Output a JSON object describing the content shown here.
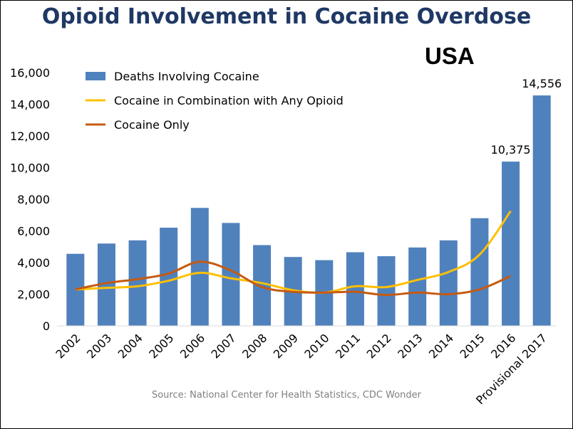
{
  "title": "Opioid Involvement in Cocaine Overdose",
  "region": "USA",
  "source": "Source: National Center for Health Statistics, CDC Wonder",
  "colors": {
    "bar": "#4f81bd",
    "combo": "#ffc000",
    "only": "#c55a11",
    "title": "#1f3864"
  },
  "chart_data": {
    "type": "bar",
    "categories": [
      "2002",
      "2003",
      "2004",
      "2005",
      "2006",
      "2007",
      "2008",
      "2009",
      "2010",
      "2011",
      "2012",
      "2013",
      "2014",
      "2015",
      "2016",
      "Provisional 2017"
    ],
    "ylim": [
      0,
      16000
    ],
    "yticks": [
      "0",
      "2,000",
      "4,000",
      "6,000",
      "8,000",
      "10,000",
      "12,000",
      "14,000",
      "16,000"
    ],
    "grid": false,
    "legend_position": "top-left",
    "series": [
      {
        "name": "Deaths Involving Cocaine",
        "type": "bar",
        "values": [
          4550,
          5200,
          5400,
          6200,
          7450,
          6500,
          5100,
          4350,
          4150,
          4650,
          4400,
          4950,
          5400,
          6800,
          10375,
          14556
        ]
      },
      {
        "name": "Cocaine in Combination with Any Opioid",
        "type": "line",
        "values": [
          2300,
          2400,
          2500,
          2850,
          3350,
          3000,
          2700,
          2250,
          2100,
          2500,
          2450,
          2900,
          3400,
          4500,
          7250,
          null
        ]
      },
      {
        "name": "Cocaine Only",
        "type": "line",
        "values": [
          2300,
          2700,
          2950,
          3300,
          4050,
          3500,
          2450,
          2150,
          2100,
          2150,
          1950,
          2100,
          2000,
          2300,
          3150,
          null
        ]
      }
    ],
    "data_labels": [
      {
        "category": "2016",
        "text": "10,375"
      },
      {
        "category": "Provisional 2017",
        "text": "14,556"
      }
    ]
  }
}
